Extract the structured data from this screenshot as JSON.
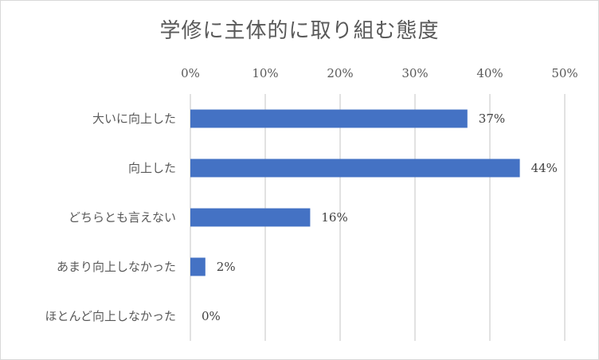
{
  "chart_data": {
    "type": "bar",
    "orientation": "horizontal",
    "title": "学修に主体的に取り組む態度",
    "xlim": [
      0,
      50
    ],
    "x_ticks": [
      0,
      10,
      20,
      30,
      40,
      50
    ],
    "x_tick_format": "%",
    "x_axis_position": "top",
    "grid": true,
    "categories": [
      "大いに向上した",
      "向上した",
      "どちらとも言えない",
      "あまり向上しなかった",
      "ほとんど向上しなかった"
    ],
    "values": [
      37,
      44,
      16,
      2,
      0
    ],
    "data_labels": [
      "37%",
      "44%",
      "16%",
      "2%",
      "0%"
    ],
    "bar_color": "#4472c4",
    "grid_color": "#d9d9d9"
  }
}
